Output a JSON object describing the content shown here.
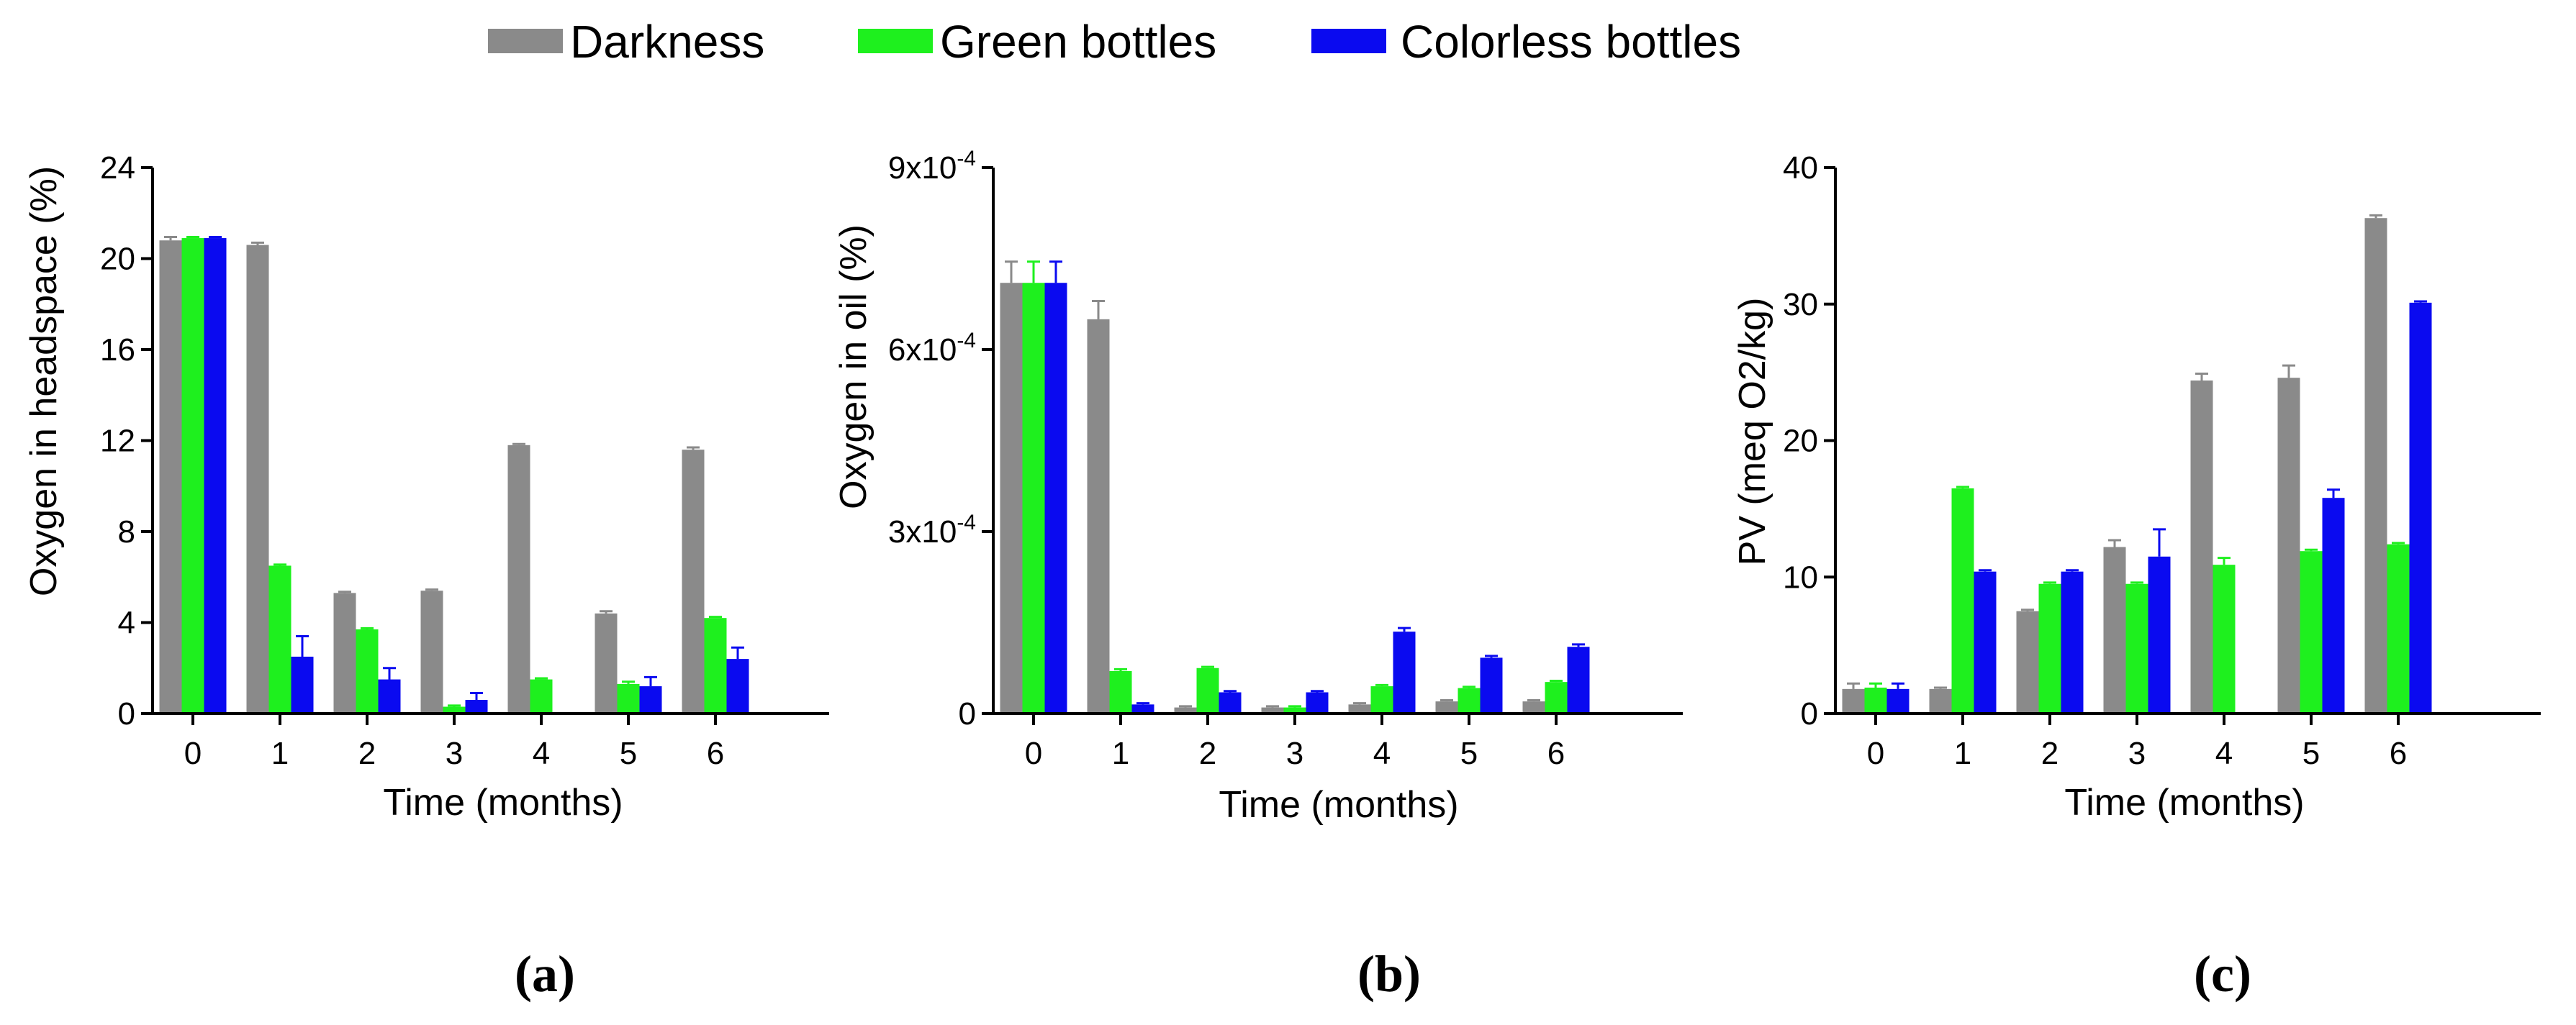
{
  "legend": [
    {
      "name": "Darkness",
      "color": "#8a8a8a"
    },
    {
      "name": "Green bottles",
      "color": "#1ef01e"
    },
    {
      "name": "Colorless bottles",
      "color": "#0a0af0"
    }
  ],
  "chart_data": [
    {
      "type": "bar",
      "panel_label": "(a)",
      "xlabel": "Time (months)",
      "ylabel": "Oxygen in headspace (%)",
      "categories": [
        "0",
        "1",
        "2",
        "3",
        "4",
        "5",
        "6"
      ],
      "ylim": [
        0,
        24
      ],
      "yticks": [
        0,
        4,
        8,
        12,
        16,
        20,
        24
      ],
      "ytick_labels": [
        "0",
        "4",
        "8",
        "12",
        "16",
        "20",
        "24"
      ],
      "series": [
        {
          "name": "Darkness",
          "values": [
            20.8,
            20.6,
            5.3,
            5.4,
            11.8,
            4.4,
            11.6
          ],
          "errors": [
            0.15,
            0.1,
            0.05,
            0.05,
            0.05,
            0.1,
            0.1
          ]
        },
        {
          "name": "Green bottles",
          "values": [
            20.9,
            6.5,
            3.7,
            0.3,
            1.5,
            1.3,
            4.2
          ],
          "errors": [
            0.05,
            0.05,
            0.05,
            0.05,
            0.05,
            0.1,
            0.05
          ]
        },
        {
          "name": "Colorless bottles",
          "values": [
            20.9,
            2.5,
            1.5,
            0.6,
            0,
            1.2,
            2.4
          ],
          "errors": [
            0.05,
            0.9,
            0.5,
            0.3,
            0,
            0.4,
            0.5
          ]
        }
      ]
    },
    {
      "type": "bar",
      "panel_label": "(b)",
      "xlabel": "Time (months)",
      "ylabel": "Oxygen in oil (%)",
      "categories": [
        "0",
        "1",
        "2",
        "3",
        "4",
        "5",
        "6"
      ],
      "ylim": [
        0,
        0.0009
      ],
      "yticks": [
        0,
        0.0003,
        0.0006,
        0.0009
      ],
      "ytick_labels": [
        "0",
        "3x10-4",
        "6x10-4",
        "9x10-4"
      ],
      "series": [
        {
          "name": "Darkness",
          "values": [
            0.00071,
            0.00065,
            1e-05,
            1e-05,
            1.5e-05,
            2e-05,
            2e-05
          ],
          "errors": [
            3.5e-05,
            3e-05,
            2e-06,
            2e-06,
            2e-06,
            2e-06,
            2e-06
          ]
        },
        {
          "name": "Green bottles",
          "values": [
            0.00071,
            7e-05,
            7.5e-05,
            1e-05,
            4.5e-05,
            4.2e-05,
            5.2e-05
          ],
          "errors": [
            3.5e-05,
            3e-06,
            2e-06,
            2e-06,
            2e-06,
            2e-06,
            2e-06
          ]
        },
        {
          "name": "Colorless bottles",
          "values": [
            0.00071,
            1.5e-05,
            3.5e-05,
            3.5e-05,
            0.000135,
            9.2e-05,
            0.00011
          ],
          "errors": [
            3.5e-05,
            2e-06,
            2e-06,
            2e-06,
            6e-06,
            3e-06,
            4e-06
          ]
        }
      ]
    },
    {
      "type": "bar",
      "panel_label": "(c)",
      "xlabel": "Time (months)",
      "ylabel": "PV (meq O2/kg)",
      "categories": [
        "0",
        "1",
        "2",
        "3",
        "4",
        "5",
        "6"
      ],
      "ylim": [
        0,
        40
      ],
      "yticks": [
        0,
        10,
        20,
        30,
        40
      ],
      "ytick_labels": [
        "0",
        "10",
        "20",
        "30",
        "40"
      ],
      "series": [
        {
          "name": "Darkness",
          "values": [
            1.8,
            1.8,
            7.5,
            12.2,
            24.4,
            24.6,
            36.3
          ],
          "errors": [
            0.4,
            0.1,
            0.1,
            0.5,
            0.5,
            0.9,
            0.2
          ]
        },
        {
          "name": "Green bottles",
          "values": [
            1.9,
            16.5,
            9.5,
            9.5,
            10.9,
            11.9,
            12.4
          ],
          "errors": [
            0.3,
            0.1,
            0.1,
            0.1,
            0.5,
            0.1,
            0.1
          ]
        },
        {
          "name": "Colorless bottles",
          "values": [
            1.8,
            10.4,
            10.4,
            11.5,
            0,
            15.8,
            30.1
          ],
          "errors": [
            0.4,
            0.1,
            0.1,
            2.0,
            0,
            0.6,
            0.1
          ]
        }
      ]
    }
  ]
}
